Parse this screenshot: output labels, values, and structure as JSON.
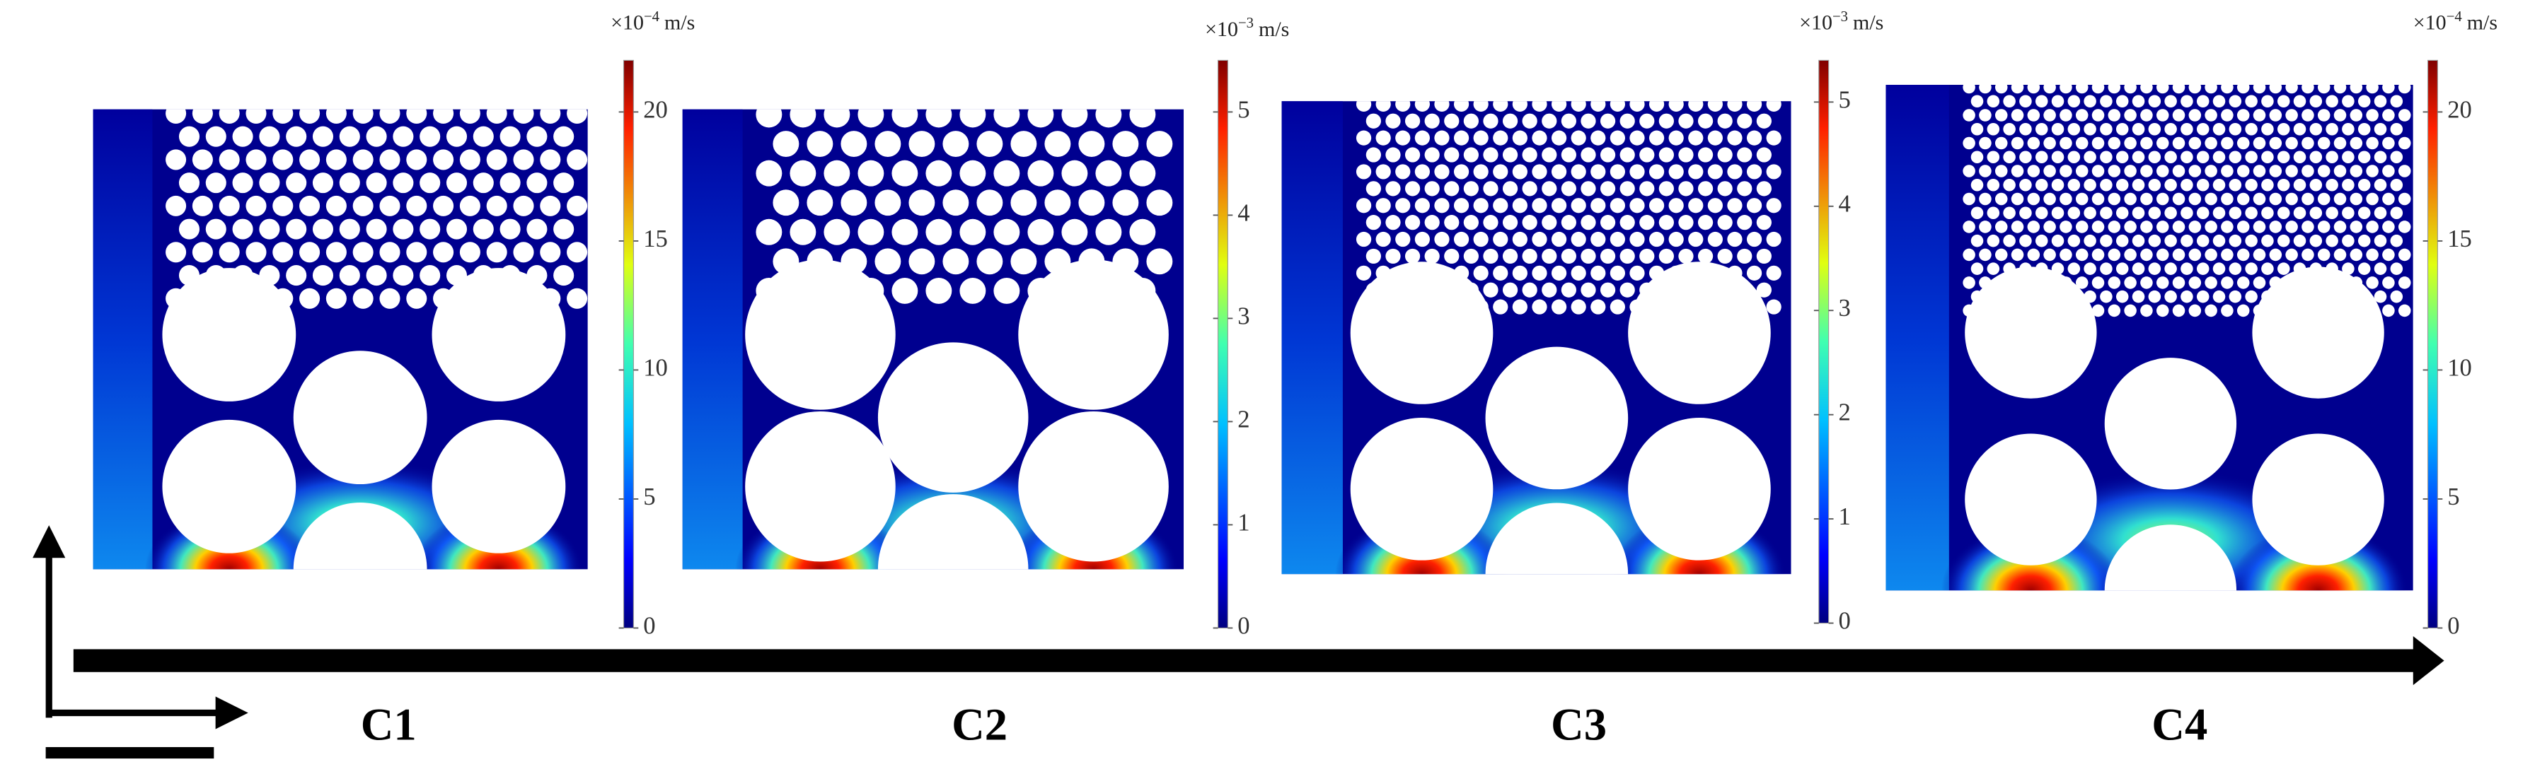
{
  "panels": [
    {
      "label": "C1",
      "colorbar": {
        "multiplier": "×10",
        "exponent": "−4",
        "unit": "m/s",
        "range": [
          0,
          22
        ],
        "ticks": [
          0,
          5,
          10,
          15,
          20
        ]
      }
    },
    {
      "label": "C2",
      "colorbar": {
        "multiplier": "×10",
        "exponent": "−3",
        "unit": "m/s",
        "range": [
          0,
          5.5
        ],
        "ticks": [
          0,
          1,
          2,
          3,
          4,
          5
        ]
      }
    },
    {
      "label": "C3",
      "colorbar": {
        "multiplier": "×10",
        "exponent": "−3",
        "unit": "m/s",
        "range": [
          0,
          5.4
        ],
        "ticks": [
          0,
          1,
          2,
          3,
          4,
          5
        ]
      }
    },
    {
      "label": "C4",
      "colorbar": {
        "multiplier": "×10",
        "exponent": "−4",
        "unit": "m/s",
        "range": [
          0,
          22
        ],
        "ticks": [
          0,
          5,
          10,
          15,
          20
        ]
      }
    }
  ]
}
